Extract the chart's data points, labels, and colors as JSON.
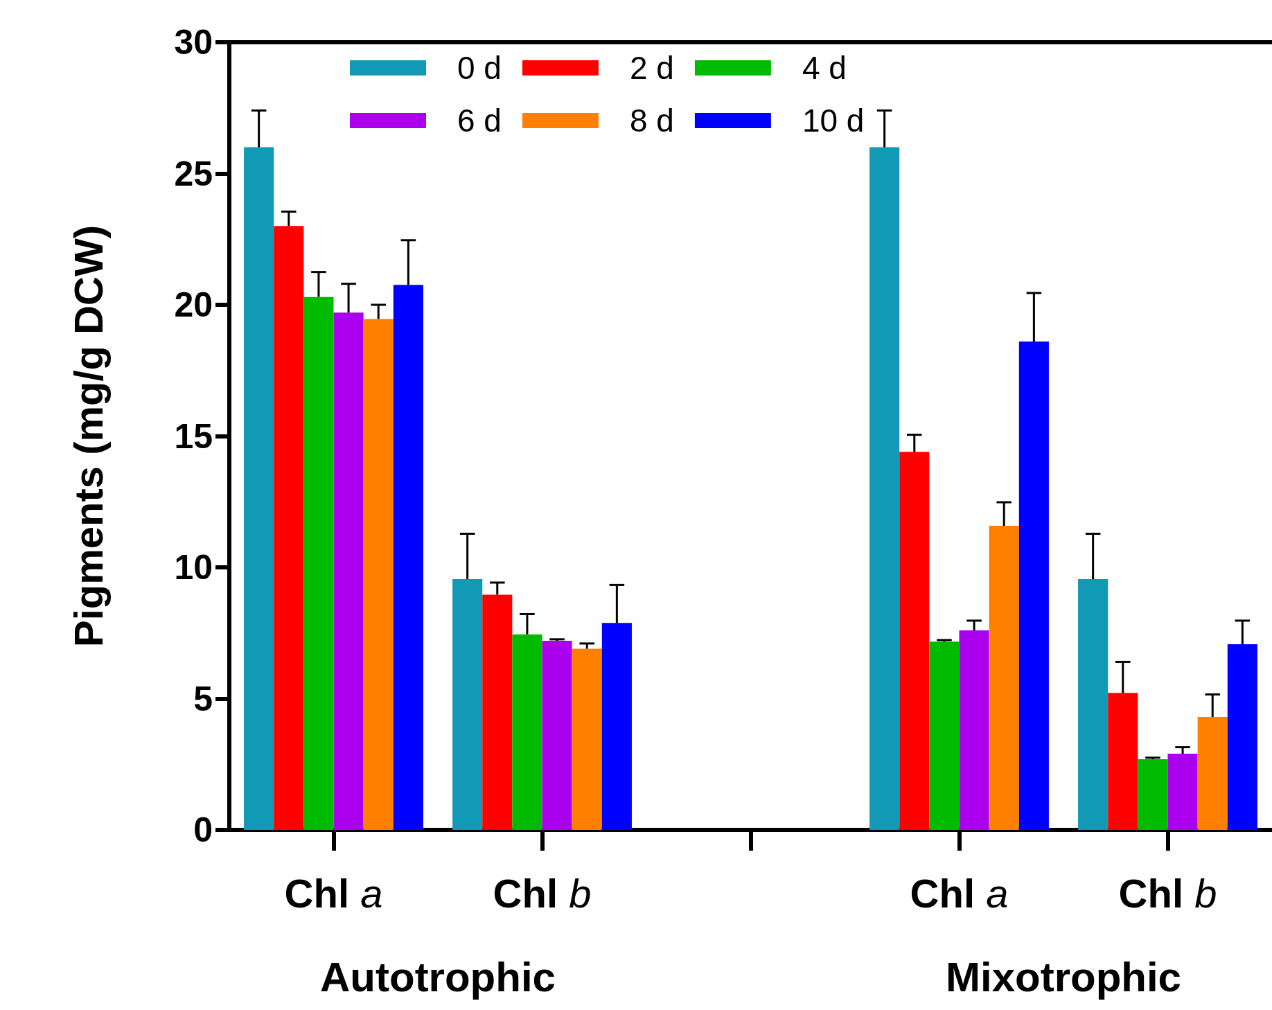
{
  "chart_data": {
    "type": "bar",
    "ylabel": "Pigments (mg/g DCW)",
    "categories": [
      "Chl a",
      "Chl b",
      null,
      "Chl a",
      "Chl b"
    ],
    "series": [
      {
        "name": "0 d",
        "color": "#1199b5",
        "values": [
          26.0,
          9.55,
          null,
          26.0,
          9.55
        ],
        "errors": [
          [
            26.0,
            27.4
          ],
          [
            9.55,
            11.28
          ],
          null,
          [
            26.0,
            27.4
          ],
          [
            9.55,
            11.28
          ]
        ]
      },
      {
        "name": "2 d",
        "color": "#ff0000",
        "values": [
          23.0,
          8.96,
          null,
          14.4,
          5.22
        ],
        "errors": [
          [
            23.0,
            23.55
          ],
          [
            8.96,
            9.42
          ],
          null,
          [
            14.4,
            15.05
          ],
          [
            5.22,
            6.4
          ]
        ]
      },
      {
        "name": "4 d",
        "color": "#00bb00",
        "values": [
          20.3,
          7.45,
          null,
          7.17,
          2.69
        ],
        "errors": [
          [
            20.3,
            21.25
          ],
          [
            7.45,
            8.22
          ],
          null,
          [
            7.17,
            7.23
          ],
          [
            2.69,
            2.75
          ]
        ]
      },
      {
        "name": "6 d",
        "color": "#aa00ee",
        "values": [
          19.7,
          7.2,
          null,
          7.6,
          2.9
        ],
        "errors": [
          [
            19.7,
            20.8
          ],
          [
            7.2,
            7.26
          ],
          null,
          [
            7.6,
            7.97
          ],
          [
            2.9,
            3.15
          ]
        ]
      },
      {
        "name": "8 d",
        "color": "#ff8000",
        "values": [
          19.46,
          6.9,
          null,
          11.58,
          4.3
        ],
        "errors": [
          [
            19.46,
            20.0
          ],
          [
            6.9,
            7.1
          ],
          null,
          [
            11.58,
            12.48
          ],
          [
            4.3,
            5.16
          ]
        ]
      },
      {
        "name": "10 d",
        "color": "#0000ff",
        "values": [
          20.76,
          7.88,
          null,
          18.6,
          7.07
        ],
        "errors": [
          [
            20.76,
            22.46
          ],
          [
            7.88,
            9.33
          ],
          null,
          [
            18.6,
            20.45
          ],
          [
            7.07,
            7.97
          ]
        ]
      }
    ],
    "ylim": [
      0,
      30
    ],
    "yticks": [
      0,
      5,
      10,
      15,
      20,
      25,
      30
    ],
    "grid": false,
    "legend": "top",
    "annotations": [
      "Autotrophic",
      "Mixotrophic"
    ]
  }
}
